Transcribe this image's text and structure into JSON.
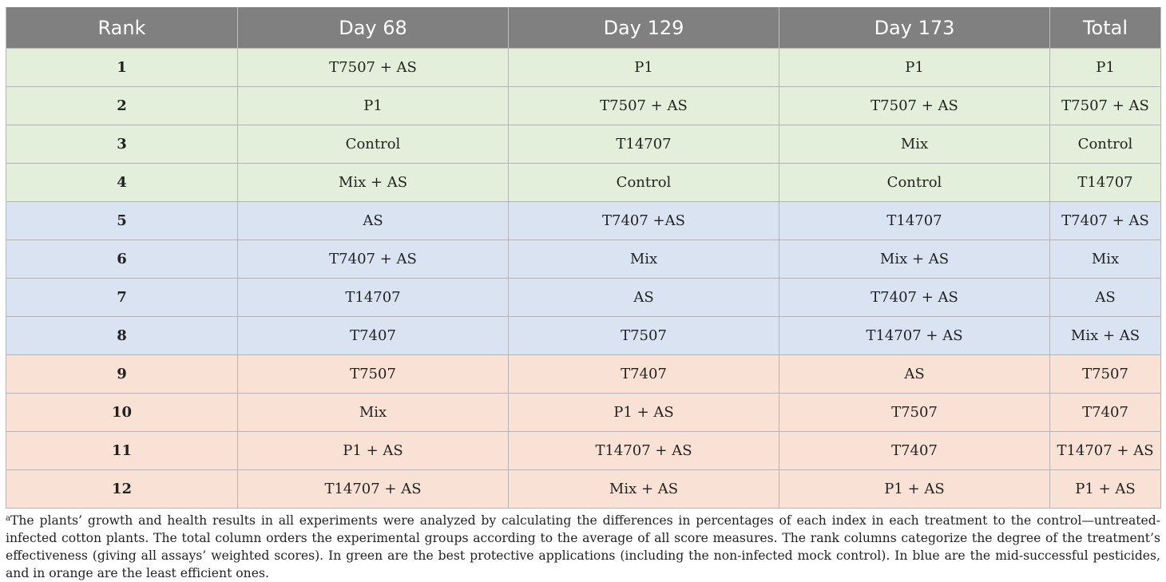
{
  "table": {
    "headers": [
      "Rank",
      "Day 68",
      "Day 129",
      "Day 173",
      "Total"
    ],
    "rows": [
      {
        "tier": "green",
        "cells": [
          "1",
          "T7507 + AS",
          "P1",
          "P1",
          "P1"
        ]
      },
      {
        "tier": "green",
        "cells": [
          "2",
          "P1",
          "T7507 + AS",
          "T7507 + AS",
          "T7507 + AS"
        ]
      },
      {
        "tier": "green",
        "cells": [
          "3",
          "Control",
          "T14707",
          "Mix",
          "Control"
        ]
      },
      {
        "tier": "green",
        "cells": [
          "4",
          "Mix + AS",
          "Control",
          "Control",
          "T14707"
        ]
      },
      {
        "tier": "blue",
        "cells": [
          "5",
          "AS",
          "T7407 +AS",
          "T14707",
          "T7407 + AS"
        ]
      },
      {
        "tier": "blue",
        "cells": [
          "6",
          "T7407 + AS",
          "Mix",
          "Mix + AS",
          "Mix"
        ]
      },
      {
        "tier": "blue",
        "cells": [
          "7",
          "T14707",
          "AS",
          "T7407 + AS",
          "AS"
        ]
      },
      {
        "tier": "blue",
        "cells": [
          "8",
          "T7407",
          "T7507",
          "T14707 + AS",
          "Mix + AS"
        ]
      },
      {
        "tier": "orange",
        "cells": [
          "9",
          "T7507",
          "T7407",
          "AS",
          "T7507"
        ]
      },
      {
        "tier": "orange",
        "cells": [
          "10",
          "Mix",
          "P1 + AS",
          "T7507",
          "T7407"
        ]
      },
      {
        "tier": "orange",
        "cells": [
          "11",
          "P1 + AS",
          "T14707 + AS",
          "T7407",
          "T14707 + AS"
        ]
      },
      {
        "tier": "orange",
        "cells": [
          "12",
          "T14707 + AS",
          "Mix + AS",
          "P1 + AS",
          "P1 + AS"
        ]
      }
    ],
    "tier_colors": {
      "green": "#e3efdb",
      "blue": "#dae3f1",
      "orange": "#f9e2d5",
      "header": "#808080"
    }
  },
  "footnote": {
    "marker": "a",
    "text": "The plants’ growth and health results in all experiments were analyzed by calculating the differences in percentages of each index in each treatment to the control—untreated-infected cotton plants. The total column orders the experimental groups according to the average of all score measures. The rank columns categorize the degree of the treatment’s effectiveness (giving all assays’ weighted scores). In green are the best protective applications (including the non-infected mock control). In blue are the mid-successful pesticides, and in orange are the least efficient ones."
  }
}
